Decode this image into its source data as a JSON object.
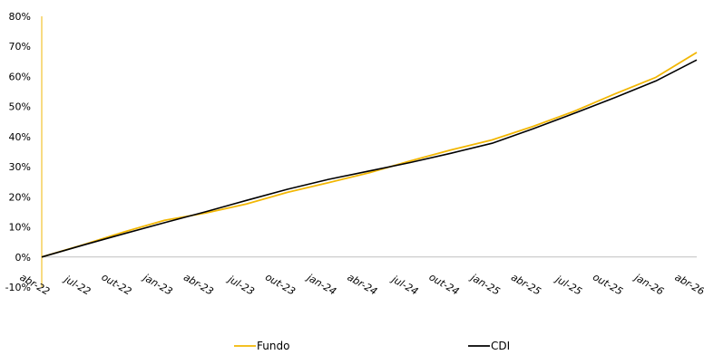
{
  "chart_data": {
    "type": "line",
    "title": "",
    "xlabel": "",
    "ylabel": "",
    "ylim": [
      -10,
      80
    ],
    "y_ticks": [
      "-10%",
      "0%",
      "10%",
      "20%",
      "30%",
      "40%",
      "50%",
      "60%",
      "70%",
      "80%"
    ],
    "y_tick_values": [
      -10,
      0,
      10,
      20,
      30,
      40,
      50,
      60,
      70,
      80
    ],
    "x_ticks": [
      "abr-22",
      "jul-22",
      "out-22",
      "jan-23",
      "abr-23",
      "jul-23",
      "out-23",
      "jan-24",
      "abr-24",
      "jul-24",
      "out-24",
      "jan-25",
      "abr-25",
      "jul-25",
      "out-25",
      "jan-26",
      "abr-26"
    ],
    "x": [
      "abr-22",
      "jul-22",
      "out-22",
      "jan-23",
      "abr-23",
      "jul-23",
      "out-23",
      "jan-24",
      "abr-24",
      "jul-24",
      "out-24",
      "jan-25",
      "abr-25",
      "jul-25",
      "out-25",
      "jan-26",
      "abr-26"
    ],
    "grid": false,
    "legend_position": "bottom",
    "series": [
      {
        "name": "Fundo",
        "color": "#F2B705",
        "values": [
          0,
          4.0,
          8.3,
          12.2,
          14.6,
          17.6,
          21.5,
          24.7,
          28.0,
          31.9,
          35.6,
          38.9,
          43.4,
          48.4,
          54.2,
          59.7,
          68.0
        ]
      },
      {
        "name": "CDI",
        "color": "#000000",
        "values": [
          0,
          3.9,
          7.7,
          11.4,
          15.0,
          18.8,
          22.5,
          25.8,
          28.6,
          31.4,
          34.5,
          37.8,
          42.6,
          47.7,
          53.0,
          58.5,
          65.5
        ]
      }
    ]
  }
}
